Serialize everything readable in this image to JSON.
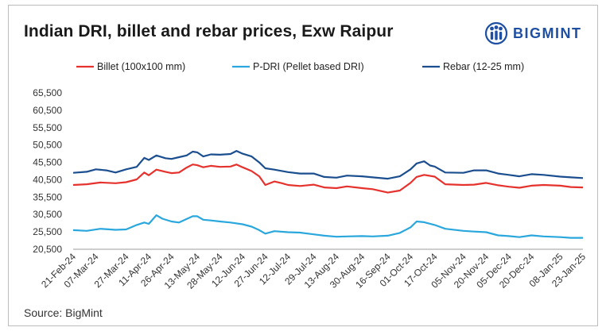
{
  "title": "Indian DRI, billet and rebar prices, Exw Raipur",
  "brand": {
    "name": "BIGMINT",
    "color": "#1e4fa3"
  },
  "source": "Source: BigMint",
  "chart_data": {
    "type": "line",
    "title": "Indian DRI, billet and rebar prices, Exw Raipur",
    "xlabel": "",
    "ylabel": "",
    "ylim": [
      20500,
      65500
    ],
    "yticks": [
      20500,
      25500,
      30500,
      35500,
      40500,
      45500,
      50500,
      55500,
      60500,
      65500
    ],
    "ytick_labels": [
      "20,500",
      "25,500",
      "30,500",
      "35,500",
      "40,500",
      "45,500",
      "50,500",
      "55,500",
      "60,500",
      "65,500"
    ],
    "x_dates": [
      "2024-02-21",
      "2024-03-07",
      "2024-03-27",
      "2024-04-11",
      "2024-04-26",
      "2024-05-13",
      "2024-05-28",
      "2024-06-12",
      "2024-06-27",
      "2024-07-12",
      "2024-07-29",
      "2024-08-13",
      "2024-08-30",
      "2024-09-16",
      "2024-10-01",
      "2024-10-17",
      "2024-11-05",
      "2024-11-20",
      "2024-12-05",
      "2024-12-20",
      "2025-01-08",
      "2025-01-23"
    ],
    "x_tick_labels": [
      "21-Feb-24",
      "07-Mar-24",
      "27-Mar-24",
      "11-Apr-24",
      "26-Apr-24",
      "13-May-24",
      "28-May-24",
      "12-Jun-24",
      "27-Jun-24",
      "12-Jul-24",
      "29-Jul-24",
      "13-Aug-24",
      "30-Aug-24",
      "16-Sep-24",
      "01-Oct-24",
      "17-Oct-24",
      "05-Nov-24",
      "20-Nov-24",
      "05-Dec-24",
      "20-Dec-24",
      "08-Jan-25",
      "23-Jan-25"
    ],
    "grid": false,
    "legend_position": "top",
    "series": [
      {
        "name": "Billet (100x100 mm)",
        "color": "#e5322d",
        "points": [
          [
            "2024-02-21",
            39000
          ],
          [
            "2024-03-01",
            39200
          ],
          [
            "2024-03-10",
            39700
          ],
          [
            "2024-03-20",
            39500
          ],
          [
            "2024-03-27",
            39800
          ],
          [
            "2024-04-03",
            40600
          ],
          [
            "2024-04-08",
            42600
          ],
          [
            "2024-04-11",
            41800
          ],
          [
            "2024-04-16",
            43400
          ],
          [
            "2024-04-22",
            42800
          ],
          [
            "2024-04-26",
            42400
          ],
          [
            "2024-05-01",
            42600
          ],
          [
            "2024-05-06",
            44000
          ],
          [
            "2024-05-10",
            44900
          ],
          [
            "2024-05-13",
            44700
          ],
          [
            "2024-05-17",
            44100
          ],
          [
            "2024-05-22",
            44500
          ],
          [
            "2024-05-28",
            44200
          ],
          [
            "2024-06-04",
            44300
          ],
          [
            "2024-06-08",
            44900
          ],
          [
            "2024-06-12",
            44100
          ],
          [
            "2024-06-18",
            43000
          ],
          [
            "2024-06-23",
            41500
          ],
          [
            "2024-06-27",
            39000
          ],
          [
            "2024-07-03",
            40000
          ],
          [
            "2024-07-08",
            39500
          ],
          [
            "2024-07-12",
            39000
          ],
          [
            "2024-07-20",
            38700
          ],
          [
            "2024-07-29",
            39100
          ],
          [
            "2024-08-05",
            38300
          ],
          [
            "2024-08-13",
            38100
          ],
          [
            "2024-08-20",
            38600
          ],
          [
            "2024-08-30",
            38100
          ],
          [
            "2024-09-06",
            37800
          ],
          [
            "2024-09-16",
            36800
          ],
          [
            "2024-09-24",
            37400
          ],
          [
            "2024-10-01",
            39600
          ],
          [
            "2024-10-05",
            41300
          ],
          [
            "2024-10-10",
            41900
          ],
          [
            "2024-10-17",
            41400
          ],
          [
            "2024-10-24",
            39200
          ],
          [
            "2024-11-05",
            39000
          ],
          [
            "2024-11-12",
            39100
          ],
          [
            "2024-11-20",
            39600
          ],
          [
            "2024-11-28",
            38900
          ],
          [
            "2024-12-05",
            38500
          ],
          [
            "2024-12-12",
            38200
          ],
          [
            "2024-12-20",
            38800
          ],
          [
            "2024-12-28",
            39000
          ],
          [
            "2025-01-08",
            38800
          ],
          [
            "2025-01-15",
            38400
          ],
          [
            "2025-01-23",
            38300
          ]
        ]
      },
      {
        "name": "P-DRI (Pellet based DRI)",
        "color": "#2aa7dc",
        "points": [
          [
            "2024-02-21",
            26000
          ],
          [
            "2024-03-01",
            25800
          ],
          [
            "2024-03-10",
            26400
          ],
          [
            "2024-03-20",
            26100
          ],
          [
            "2024-03-27",
            26200
          ],
          [
            "2024-04-03",
            27500
          ],
          [
            "2024-04-08",
            28200
          ],
          [
            "2024-04-11",
            27800
          ],
          [
            "2024-04-16",
            30300
          ],
          [
            "2024-04-20",
            29300
          ],
          [
            "2024-04-26",
            28500
          ],
          [
            "2024-05-01",
            28200
          ],
          [
            "2024-05-06",
            29200
          ],
          [
            "2024-05-10",
            30000
          ],
          [
            "2024-05-13",
            30000
          ],
          [
            "2024-05-17",
            29000
          ],
          [
            "2024-05-22",
            28800
          ],
          [
            "2024-05-28",
            28500
          ],
          [
            "2024-06-04",
            28200
          ],
          [
            "2024-06-12",
            27700
          ],
          [
            "2024-06-18",
            27000
          ],
          [
            "2024-06-23",
            26000
          ],
          [
            "2024-06-27",
            25000
          ],
          [
            "2024-07-03",
            25700
          ],
          [
            "2024-07-12",
            25400
          ],
          [
            "2024-07-20",
            25300
          ],
          [
            "2024-07-29",
            24800
          ],
          [
            "2024-08-05",
            24400
          ],
          [
            "2024-08-13",
            24100
          ],
          [
            "2024-08-20",
            24200
          ],
          [
            "2024-08-30",
            24300
          ],
          [
            "2024-09-06",
            24200
          ],
          [
            "2024-09-16",
            24400
          ],
          [
            "2024-09-24",
            25200
          ],
          [
            "2024-10-01",
            26800
          ],
          [
            "2024-10-05",
            28500
          ],
          [
            "2024-10-10",
            28300
          ],
          [
            "2024-10-17",
            27500
          ],
          [
            "2024-10-24",
            26400
          ],
          [
            "2024-11-05",
            25800
          ],
          [
            "2024-11-12",
            25600
          ],
          [
            "2024-11-20",
            25400
          ],
          [
            "2024-11-28",
            24500
          ],
          [
            "2024-12-05",
            24300
          ],
          [
            "2024-12-12",
            24000
          ],
          [
            "2024-12-20",
            24500
          ],
          [
            "2024-12-28",
            24200
          ],
          [
            "2025-01-08",
            24000
          ],
          [
            "2025-01-15",
            23800
          ],
          [
            "2025-01-23",
            23800
          ]
        ]
      },
      {
        "name": "Rebar (12-25 mm)",
        "color": "#1b4e8f",
        "points": [
          [
            "2024-02-21",
            42500
          ],
          [
            "2024-03-01",
            42800
          ],
          [
            "2024-03-07",
            43500
          ],
          [
            "2024-03-14",
            43200
          ],
          [
            "2024-03-20",
            42600
          ],
          [
            "2024-03-27",
            43500
          ],
          [
            "2024-04-03",
            44200
          ],
          [
            "2024-04-08",
            46800
          ],
          [
            "2024-04-11",
            46200
          ],
          [
            "2024-04-16",
            47500
          ],
          [
            "2024-04-22",
            46700
          ],
          [
            "2024-04-26",
            46500
          ],
          [
            "2024-05-01",
            47000
          ],
          [
            "2024-05-06",
            47500
          ],
          [
            "2024-05-10",
            48600
          ],
          [
            "2024-05-13",
            48400
          ],
          [
            "2024-05-17",
            47200
          ],
          [
            "2024-05-22",
            47800
          ],
          [
            "2024-05-28",
            47700
          ],
          [
            "2024-06-04",
            47900
          ],
          [
            "2024-06-08",
            48800
          ],
          [
            "2024-06-12",
            48000
          ],
          [
            "2024-06-18",
            47200
          ],
          [
            "2024-06-23",
            45500
          ],
          [
            "2024-06-27",
            43800
          ],
          [
            "2024-07-03",
            43400
          ],
          [
            "2024-07-12",
            42700
          ],
          [
            "2024-07-20",
            42300
          ],
          [
            "2024-07-29",
            42300
          ],
          [
            "2024-08-05",
            41300
          ],
          [
            "2024-08-13",
            41100
          ],
          [
            "2024-08-20",
            41700
          ],
          [
            "2024-08-30",
            41500
          ],
          [
            "2024-09-06",
            41200
          ],
          [
            "2024-09-16",
            40800
          ],
          [
            "2024-09-24",
            41500
          ],
          [
            "2024-10-01",
            43500
          ],
          [
            "2024-10-05",
            45200
          ],
          [
            "2024-10-10",
            45800
          ],
          [
            "2024-10-14",
            44600
          ],
          [
            "2024-10-17",
            44300
          ],
          [
            "2024-10-24",
            42600
          ],
          [
            "2024-11-05",
            42500
          ],
          [
            "2024-11-12",
            43200
          ],
          [
            "2024-11-20",
            43200
          ],
          [
            "2024-11-28",
            42300
          ],
          [
            "2024-12-05",
            41900
          ],
          [
            "2024-12-12",
            41500
          ],
          [
            "2024-12-20",
            42100
          ],
          [
            "2024-12-28",
            41900
          ],
          [
            "2025-01-08",
            41400
          ],
          [
            "2025-01-15",
            41200
          ],
          [
            "2025-01-23",
            41000
          ]
        ]
      }
    ]
  }
}
